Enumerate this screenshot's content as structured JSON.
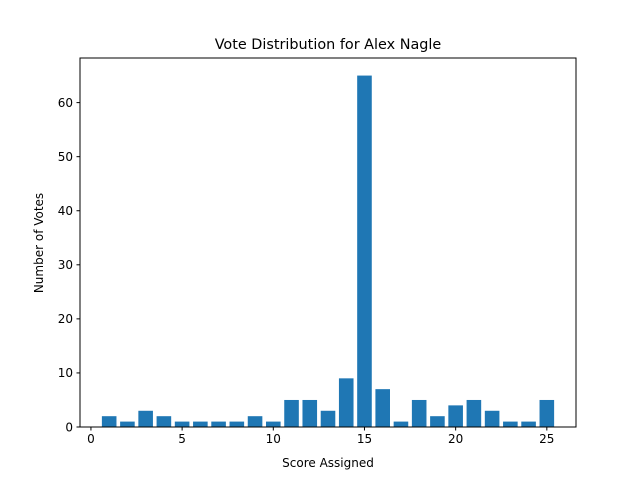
{
  "chart_data": {
    "type": "bar",
    "title": "Vote Distribution for Alex Nagle",
    "xlabel": "Score Assigned",
    "ylabel": "Number of Votes",
    "x": [
      1,
      2,
      3,
      4,
      5,
      6,
      7,
      8,
      9,
      10,
      11,
      12,
      13,
      14,
      15,
      16,
      17,
      18,
      19,
      20,
      21,
      22,
      23,
      24,
      25
    ],
    "values": [
      2,
      1,
      3,
      2,
      1,
      1,
      1,
      1,
      2,
      1,
      5,
      5,
      3,
      9,
      65,
      7,
      1,
      5,
      2,
      4,
      5,
      3,
      1,
      1,
      5
    ],
    "xlim": [
      -0.6,
      26.6
    ],
    "ylim": [
      0,
      68.25
    ],
    "xticks": [
      0,
      5,
      10,
      15,
      20,
      25
    ],
    "yticks": [
      0,
      10,
      20,
      30,
      40,
      50,
      60
    ],
    "bar_color": "#1f77b4",
    "grid": false
  }
}
